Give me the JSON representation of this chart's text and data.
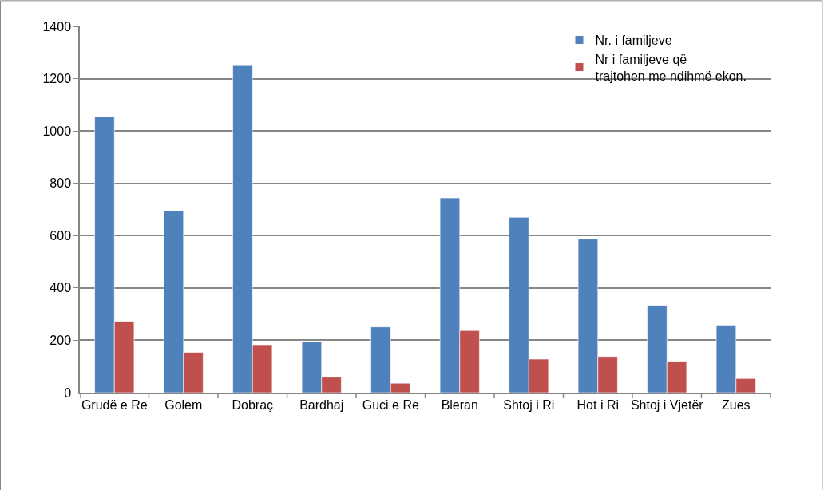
{
  "chart_data": {
    "type": "bar",
    "categories": [
      "Grudë e Re",
      "Golem",
      "Dobraç",
      "Bardhaj",
      "Guci e Re",
      "Bleran",
      "Shtoj i Ri",
      "Hot i Ri",
      "Shtoj i Vjetër",
      "Zues"
    ],
    "series": [
      {
        "name": "Nr. i familjeve",
        "color": "#4f81bd",
        "values": [
          1055,
          694,
          1250,
          195,
          251,
          744,
          670,
          587,
          333,
          258
        ]
      },
      {
        "name": "Nr i familjeve që trajtohen me ndihmë ekon.",
        "color": "#c0504d",
        "values": [
          272,
          154,
          183,
          59,
          36,
          237,
          128,
          138,
          120,
          54
        ]
      }
    ],
    "ylim": [
      0,
      1400
    ],
    "yticks": [
      0,
      200,
      400,
      600,
      800,
      1000,
      1200,
      1400
    ],
    "grid": "y",
    "legend": "top right"
  }
}
